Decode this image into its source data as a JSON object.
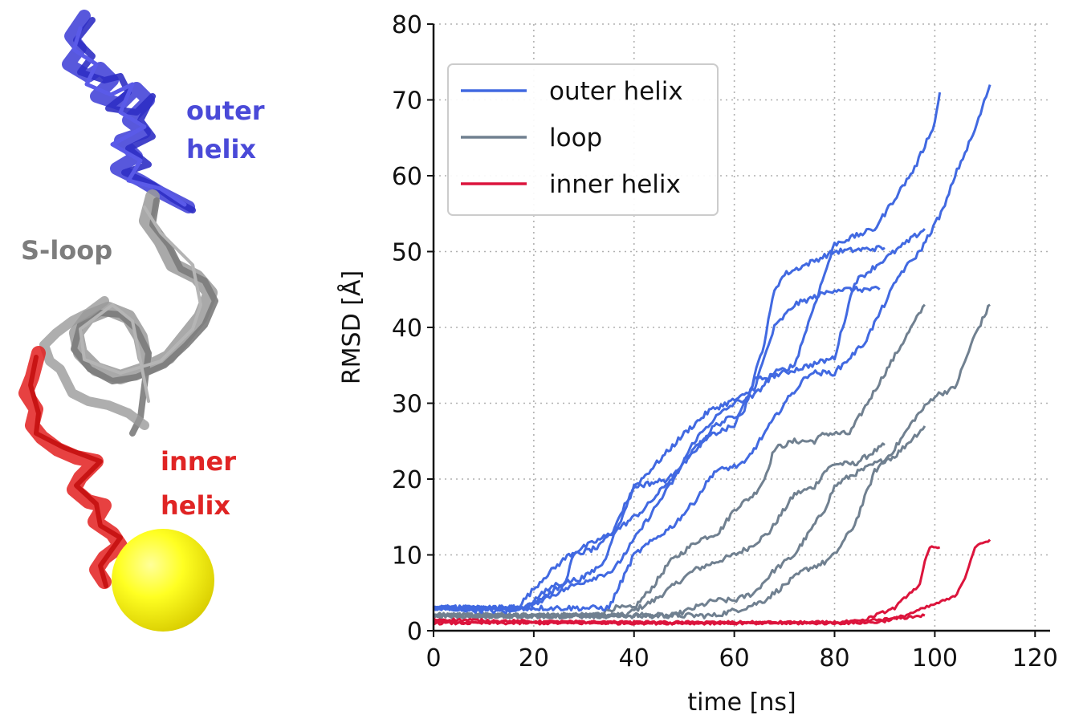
{
  "molecule": {
    "labels": [
      {
        "id": "outer",
        "lines": [
          "outer",
          "helix"
        ],
        "color": "#4a4ad8"
      },
      {
        "id": "sloop",
        "lines": [
          "S-loop"
        ],
        "color": "#7d7d7d"
      },
      {
        "id": "inner",
        "lines": [
          "inner",
          "helix"
        ],
        "color": "#e02424"
      }
    ]
  },
  "chart_data": {
    "type": "line",
    "xlabel": "time [ns]",
    "ylabel": "RMSD [Å]",
    "xlim": [
      0,
      123
    ],
    "ylim": [
      0,
      80
    ],
    "xticks": [
      "0",
      "20",
      "40",
      "60",
      "80",
      "100",
      "120"
    ],
    "yticks": [
      "0",
      "10",
      "20",
      "30",
      "40",
      "50",
      "60",
      "70",
      "80"
    ],
    "grid": "dotted",
    "legend": {
      "position": "top-left",
      "entries": [
        "outer helix",
        "loop",
        "inner helix"
      ]
    },
    "colors": {
      "outer helix": "#4169e1",
      "loop": "#708090",
      "inner helix": "#dc143c"
    },
    "series": [
      {
        "name": "outer helix",
        "group": "outer helix",
        "x": [
          0,
          16,
          18,
          22,
          27,
          30,
          36,
          42,
          50,
          56,
          62,
          66,
          68,
          70,
          80,
          90
        ],
        "y": [
          3,
          2.5,
          4,
          7,
          10,
          11,
          13,
          16,
          22,
          27,
          29,
          38,
          45,
          47,
          50,
          50.5
        ]
      },
      {
        "name": "outer helix",
        "group": "outer helix",
        "x": [
          0,
          18,
          26,
          28,
          33,
          37,
          40,
          43,
          50,
          55,
          62,
          64,
          68,
          72,
          80,
          89
        ],
        "y": [
          3,
          3,
          6,
          10,
          11,
          14,
          19,
          21,
          26,
          29,
          31,
          32,
          40,
          43,
          45,
          45
        ]
      },
      {
        "name": "outer helix",
        "group": "outer helix",
        "x": [
          0,
          18,
          24,
          30,
          34,
          37,
          40,
          47,
          52,
          56,
          60,
          64,
          70,
          80,
          84,
          98
        ],
        "y": [
          3,
          3,
          6,
          7,
          9,
          15,
          19,
          20,
          24,
          26,
          27,
          33,
          34,
          36,
          46,
          53
        ]
      },
      {
        "name": "outer helix",
        "group": "outer helix",
        "x": [
          0,
          18,
          28,
          36,
          40,
          44,
          48,
          52,
          56,
          60,
          64,
          68,
          72,
          76,
          80,
          88,
          96,
          100,
          101
        ],
        "y": [
          3,
          3,
          6,
          8,
          12,
          16,
          20,
          25,
          28,
          30,
          31,
          34,
          35,
          43,
          51,
          53,
          61,
          67,
          71
        ]
      },
      {
        "name": "outer helix",
        "group": "outer helix",
        "x": [
          0,
          35,
          40,
          44,
          48,
          52,
          56,
          62,
          67,
          70,
          75,
          80,
          86,
          93,
          97,
          102,
          104,
          108,
          111
        ],
        "y": [
          3,
          3,
          10,
          12,
          14,
          17,
          21,
          22,
          27,
          30,
          34,
          34,
          38,
          47,
          50,
          56,
          60,
          66,
          72
        ]
      },
      {
        "name": "loop",
        "group": "loop",
        "x": [
          0,
          38,
          44,
          48,
          52,
          56,
          60,
          63,
          67,
          72,
          76,
          78,
          80,
          84,
          90
        ],
        "y": [
          2,
          2,
          4,
          6,
          8,
          9,
          10,
          11,
          13,
          18,
          19,
          21,
          22,
          22,
          24.5
        ]
      },
      {
        "name": "loop",
        "group": "loop",
        "x": [
          0,
          32,
          36,
          40,
          44,
          47,
          53,
          57,
          60,
          64,
          66,
          68,
          72,
          76,
          78,
          83,
          98
        ],
        "y": [
          2,
          2,
          3,
          3,
          6,
          9,
          12,
          13,
          16,
          18,
          20,
          24,
          25,
          25,
          26,
          26,
          43
        ]
      },
      {
        "name": "loop",
        "group": "loop",
        "x": [
          0,
          48,
          52,
          56,
          60,
          64,
          68,
          72,
          75,
          78,
          80,
          82,
          85,
          88,
          92,
          98
        ],
        "y": [
          2,
          2,
          3,
          4,
          4,
          5,
          8,
          10,
          13,
          16,
          19,
          20,
          21,
          22,
          23,
          27
        ]
      },
      {
        "name": "loop",
        "group": "loop",
        "x": [
          0,
          56,
          62,
          66,
          70,
          74,
          78,
          80,
          84,
          88,
          92,
          96,
          100,
          104,
          108,
          111
        ],
        "y": [
          2,
          2,
          3,
          4,
          6,
          8,
          9,
          10,
          14,
          21,
          24,
          28,
          31,
          32,
          39,
          43
        ]
      },
      {
        "name": "inner helix",
        "group": "inner helix",
        "x": [
          0,
          20,
          40,
          60,
          80,
          86,
          90,
          94,
          96,
          98
        ],
        "y": [
          1.5,
          1.2,
          1.1,
          1.1,
          1.1,
          1.3,
          1.5,
          1.7,
          1.9,
          2
        ]
      },
      {
        "name": "inner helix",
        "group": "inner helix",
        "x": [
          0,
          30,
          60,
          85,
          88,
          92,
          95,
          97,
          98,
          99,
          101
        ],
        "y": [
          1.2,
          1.1,
          1.0,
          1.1,
          2,
          3,
          5,
          6,
          9,
          11,
          11
        ]
      },
      {
        "name": "inner helix",
        "group": "inner helix",
        "x": [
          0,
          40,
          80,
          88,
          90,
          92,
          94,
          96,
          98,
          100,
          102,
          104,
          106,
          108,
          111
        ],
        "y": [
          1,
          1,
          1,
          1.1,
          1.3,
          1.6,
          2,
          2.5,
          3,
          3.5,
          4,
          4.5,
          7,
          11,
          12
        ]
      }
    ]
  }
}
